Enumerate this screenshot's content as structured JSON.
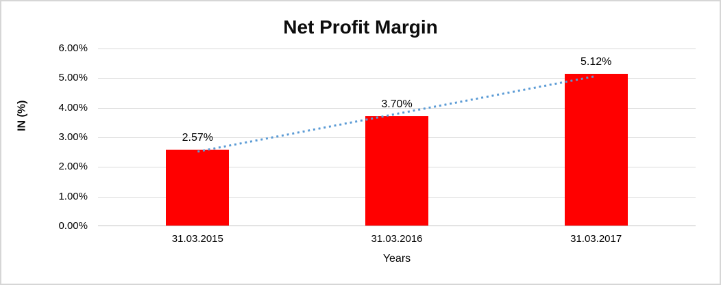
{
  "frame": {
    "background": "#ffffff",
    "border_color": "#d6d6d6"
  },
  "chart_data": {
    "type": "bar",
    "title": "Net Profit Margin",
    "xlabel": "Years",
    "ylabel": "IN (%)",
    "categories": [
      "31.03.2015",
      "31.03.2016",
      "31.03.2017"
    ],
    "values": [
      2.57,
      3.7,
      5.12
    ],
    "value_labels": [
      "2.57%",
      "3.70%",
      "5.12%"
    ],
    "y_ticks": {
      "values": [
        0,
        1,
        2,
        3,
        4,
        5,
        6
      ],
      "labels": [
        "0.00%",
        "1.00%",
        "2.00%",
        "3.00%",
        "4.00%",
        "5.00%",
        "6.00%"
      ]
    },
    "ylim": [
      0,
      6
    ],
    "grid": "horizontal",
    "legend": "none",
    "bar_color": "#ff0000",
    "gridline_color": "#d9d9d9",
    "axisline_color": "#bfbfbf",
    "trendline": {
      "style": "dotted",
      "color": "#5b9bd5",
      "start_value": 2.52,
      "end_value": 5.07
    }
  }
}
